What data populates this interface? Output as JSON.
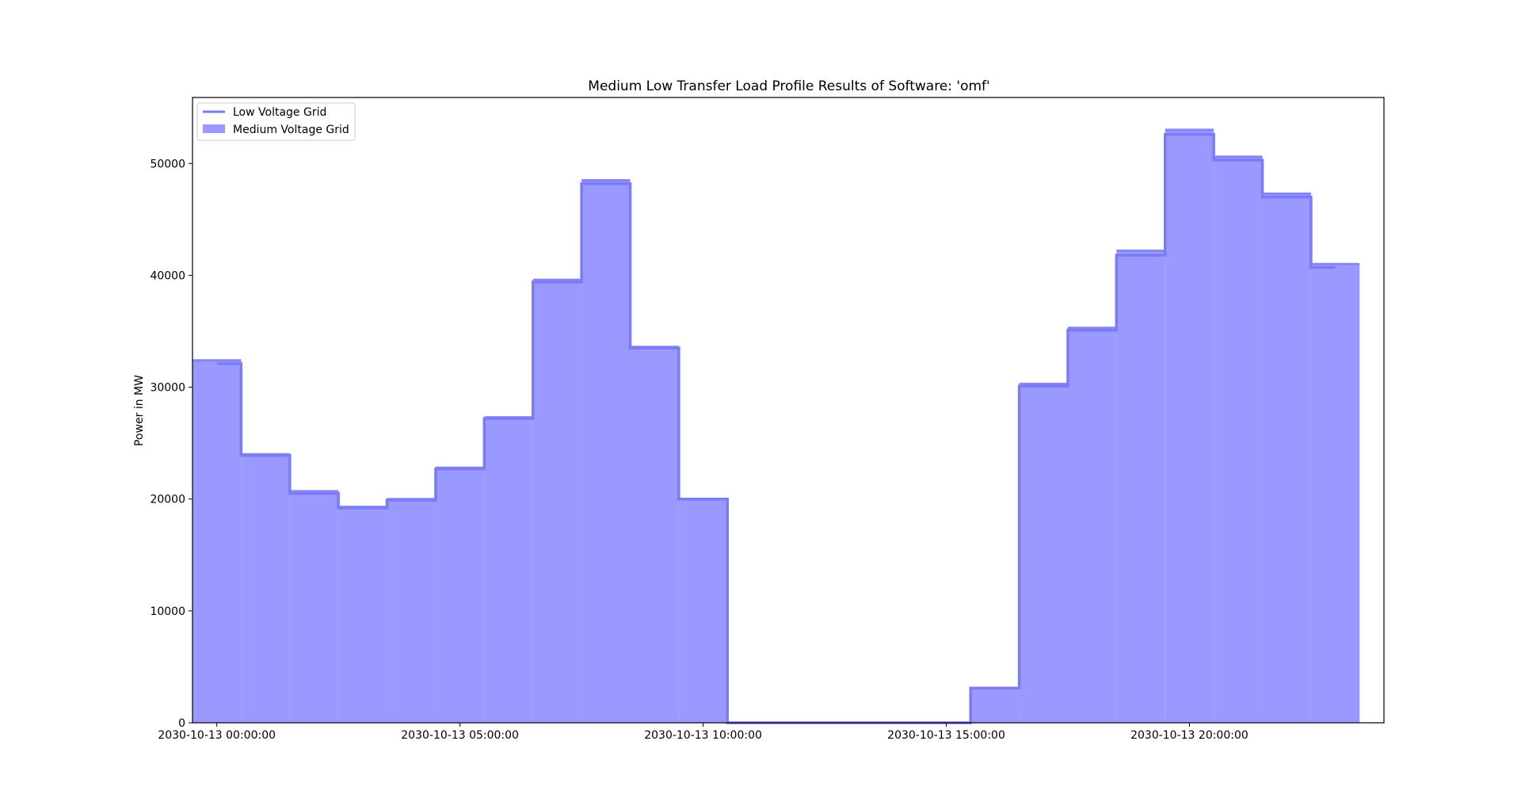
{
  "chart_data": {
    "type": "area",
    "title": "Medium Low Transfer Load Profile Results of Software: 'omf'",
    "xlabel": "",
    "ylabel": "Power in MW",
    "x": [
      "2030-10-13 00:00:00",
      "2030-10-13 01:00:00",
      "2030-10-13 02:00:00",
      "2030-10-13 03:00:00",
      "2030-10-13 04:00:00",
      "2030-10-13 05:00:00",
      "2030-10-13 06:00:00",
      "2030-10-13 07:00:00",
      "2030-10-13 08:00:00",
      "2030-10-13 09:00:00",
      "2030-10-13 10:00:00",
      "2030-10-13 11:00:00",
      "2030-10-13 12:00:00",
      "2030-10-13 13:00:00",
      "2030-10-13 14:00:00",
      "2030-10-13 15:00:00",
      "2030-10-13 16:00:00",
      "2030-10-13 17:00:00",
      "2030-10-13 18:00:00",
      "2030-10-13 19:00:00",
      "2030-10-13 20:00:00",
      "2030-10-13 21:00:00",
      "2030-10-13 22:00:00",
      "2030-10-13 23:00:00"
    ],
    "xticks": [
      "2030-10-13 00:00:00",
      "2030-10-13 05:00:00",
      "2030-10-13 10:00:00",
      "2030-10-13 15:00:00",
      "2030-10-13 20:00:00"
    ],
    "yticks": [
      0,
      10000,
      20000,
      30000,
      40000,
      50000
    ],
    "ylim": [
      0,
      55900
    ],
    "xlim_hours": [
      -0.5,
      24.0
    ],
    "legend_position": "top-left",
    "grid": false,
    "series": [
      {
        "name": "Low Voltage Grid",
        "kind": "step-line",
        "color": "#7b7bf5",
        "x_hours": [
          0.0,
          1.0,
          2.0,
          3.0,
          4.0,
          5.0,
          6.0,
          7.0,
          8.0,
          9.0,
          10.0,
          11.0,
          12.0,
          13.0,
          14.0,
          15.0,
          16.0,
          17.0,
          18.0,
          19.0,
          20.0,
          21.0,
          22.0,
          23.0
        ],
        "values": [
          32100,
          23900,
          20500,
          19200,
          19900,
          22700,
          27200,
          39400,
          48200,
          33500,
          20000,
          0,
          0,
          0,
          0,
          0,
          3100,
          30100,
          35100,
          41800,
          52600,
          50300,
          47000,
          40700
        ]
      },
      {
        "name": "Medium Voltage Grid",
        "kind": "step-area",
        "color": "#9999ff",
        "x_hours": [
          -0.5,
          0.5,
          1.5,
          2.5,
          3.5,
          4.5,
          5.5,
          6.5,
          7.5,
          8.5,
          9.5,
          10.5,
          11.5,
          12.5,
          13.5,
          14.5,
          15.5,
          16.5,
          17.5,
          18.5,
          19.5,
          20.5,
          21.5,
          22.5
        ],
        "values": [
          32400,
          24000,
          20700,
          19300,
          20000,
          22800,
          27300,
          39600,
          48500,
          33600,
          20000,
          0,
          0,
          0,
          0,
          0,
          3100,
          30300,
          35300,
          42200,
          53000,
          50600,
          47300,
          41000
        ]
      }
    ]
  }
}
